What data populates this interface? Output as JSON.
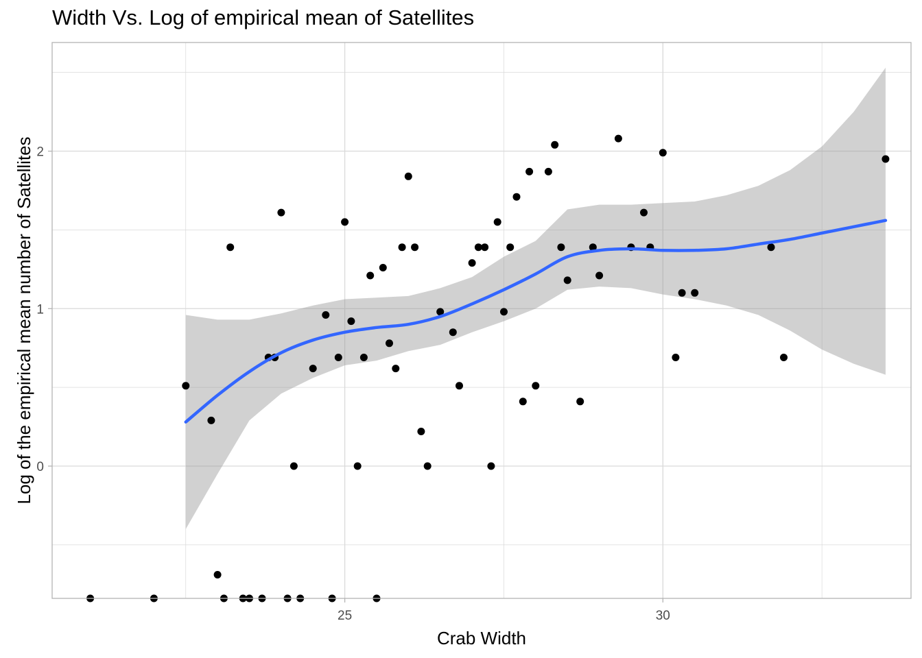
{
  "chart_data": {
    "type": "scatter",
    "title": "Width Vs. Log of empirical mean of Satellites",
    "xlabel": "Crab Width",
    "ylabel": "Log of the empirical mean number of Satellites",
    "xlim": [
      20.4,
      33.9
    ],
    "ylim": [
      -0.84,
      2.69
    ],
    "x_ticks": [
      25,
      30
    ],
    "y_ticks": [
      0,
      1,
      2
    ],
    "grid": true,
    "points": [
      [
        21.0,
        -0.84
      ],
      [
        22.0,
        -0.84
      ],
      [
        22.5,
        0.51
      ],
      [
        22.9,
        0.29
      ],
      [
        23.0,
        -0.69
      ],
      [
        23.1,
        -0.84
      ],
      [
        23.2,
        1.39
      ],
      [
        23.4,
        -0.84
      ],
      [
        23.5,
        -0.84
      ],
      [
        23.7,
        -0.84
      ],
      [
        23.8,
        0.69
      ],
      [
        23.9,
        0.69
      ],
      [
        24.0,
        1.61
      ],
      [
        24.1,
        -0.84
      ],
      [
        24.2,
        0.0
      ],
      [
        24.3,
        -0.84
      ],
      [
        24.5,
        0.62
      ],
      [
        24.7,
        0.96
      ],
      [
        24.8,
        -0.84
      ],
      [
        24.9,
        0.69
      ],
      [
        25.0,
        1.55
      ],
      [
        25.1,
        0.92
      ],
      [
        25.2,
        0.0
      ],
      [
        25.3,
        0.69
      ],
      [
        25.4,
        1.21
      ],
      [
        25.5,
        -0.84
      ],
      [
        25.6,
        1.26
      ],
      [
        25.7,
        0.78
      ],
      [
        25.8,
        0.62
      ],
      [
        25.9,
        1.39
      ],
      [
        26.0,
        1.84
      ],
      [
        26.1,
        1.39
      ],
      [
        26.2,
        0.22
      ],
      [
        26.3,
        0.0
      ],
      [
        26.5,
        0.98
      ],
      [
        26.7,
        0.85
      ],
      [
        26.8,
        0.51
      ],
      [
        27.0,
        1.29
      ],
      [
        27.1,
        1.39
      ],
      [
        27.2,
        1.39
      ],
      [
        27.3,
        0.0
      ],
      [
        27.4,
        1.55
      ],
      [
        27.5,
        0.98
      ],
      [
        27.6,
        1.39
      ],
      [
        27.7,
        1.71
      ],
      [
        27.8,
        0.41
      ],
      [
        27.9,
        1.87
      ],
      [
        28.0,
        0.51
      ],
      [
        28.2,
        1.87
      ],
      [
        28.3,
        2.04
      ],
      [
        28.4,
        1.39
      ],
      [
        28.5,
        1.18
      ],
      [
        28.7,
        0.41
      ],
      [
        28.9,
        1.39
      ],
      [
        29.0,
        1.21
      ],
      [
        29.3,
        2.08
      ],
      [
        29.5,
        1.39
      ],
      [
        29.7,
        1.61
      ],
      [
        29.8,
        1.39
      ],
      [
        30.0,
        1.99
      ],
      [
        30.2,
        0.69
      ],
      [
        30.3,
        1.1
      ],
      [
        30.5,
        1.1
      ],
      [
        31.7,
        1.39
      ],
      [
        31.9,
        0.69
      ],
      [
        33.5,
        1.95
      ]
    ],
    "smooth_line": {
      "method": "loess",
      "color": "#3366FF",
      "x": [
        22.5,
        23.0,
        23.5,
        24.0,
        24.5,
        25.0,
        25.5,
        26.0,
        26.5,
        27.0,
        27.5,
        28.0,
        28.5,
        29.0,
        29.5,
        30.0,
        30.5,
        31.0,
        31.5,
        32.0,
        32.5,
        33.0,
        33.5
      ],
      "y": [
        0.28,
        0.45,
        0.6,
        0.72,
        0.8,
        0.85,
        0.88,
        0.9,
        0.95,
        1.03,
        1.12,
        1.22,
        1.33,
        1.37,
        1.38,
        1.37,
        1.37,
        1.38,
        1.41,
        1.44,
        1.48,
        1.52,
        1.56
      ],
      "lower": [
        -0.4,
        -0.05,
        0.29,
        0.46,
        0.56,
        0.64,
        0.67,
        0.73,
        0.77,
        0.85,
        0.92,
        1.0,
        1.12,
        1.14,
        1.13,
        1.09,
        1.06,
        1.02,
        0.96,
        0.86,
        0.74,
        0.65,
        0.58
      ],
      "upper": [
        0.96,
        0.93,
        0.93,
        0.97,
        1.02,
        1.06,
        1.07,
        1.08,
        1.13,
        1.2,
        1.33,
        1.43,
        1.63,
        1.66,
        1.66,
        1.67,
        1.68,
        1.72,
        1.78,
        1.88,
        2.03,
        2.25,
        2.53
      ]
    },
    "colors": {
      "points": "#000000",
      "ribbon": "#999999",
      "grid": "#d9d9d9",
      "panel_border": "#b3b3b3"
    }
  }
}
